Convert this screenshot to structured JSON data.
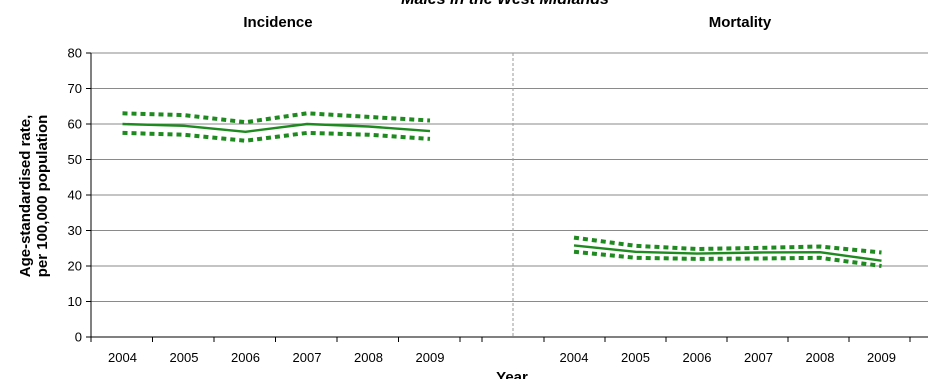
{
  "chart_data": {
    "type": "line",
    "title": "Males in the West Midlands",
    "xlabel": "Year",
    "ylabel": [
      "Age-standardised rate,",
      "per 100,000 population"
    ],
    "ylim": [
      0,
      80
    ],
    "yticks": [
      0,
      10,
      20,
      30,
      40,
      50,
      60,
      70,
      80
    ],
    "grid": true,
    "line_color": "#1f8a1f",
    "panels": [
      {
        "title": "Incidence",
        "x": [
          "2004",
          "2005",
          "2006",
          "2007",
          "2008",
          "2009"
        ],
        "series": [
          {
            "style": "solid",
            "values": [
              60.0,
              59.5,
              57.8,
              60.0,
              59.3,
              58.0
            ]
          },
          {
            "style": "dotted",
            "values": [
              63.0,
              62.5,
              60.5,
              63.0,
              62.0,
              61.0
            ]
          },
          {
            "style": "dotted",
            "values": [
              57.5,
              57.0,
              55.3,
              57.5,
              57.0,
              55.8
            ]
          }
        ]
      },
      {
        "title": "Mortality",
        "x": [
          "2004",
          "2005",
          "2006",
          "2007",
          "2008",
          "2009"
        ],
        "series": [
          {
            "style": "solid",
            "values": [
              25.8,
              24.0,
              23.5,
              23.8,
              23.9,
              21.5
            ]
          },
          {
            "style": "dotted",
            "values": [
              28.0,
              25.7,
              24.8,
              25.1,
              25.5,
              23.8
            ]
          },
          {
            "style": "dotted",
            "values": [
              24.0,
              22.3,
              22.0,
              22.1,
              22.3,
              20.0
            ]
          }
        ]
      }
    ]
  }
}
